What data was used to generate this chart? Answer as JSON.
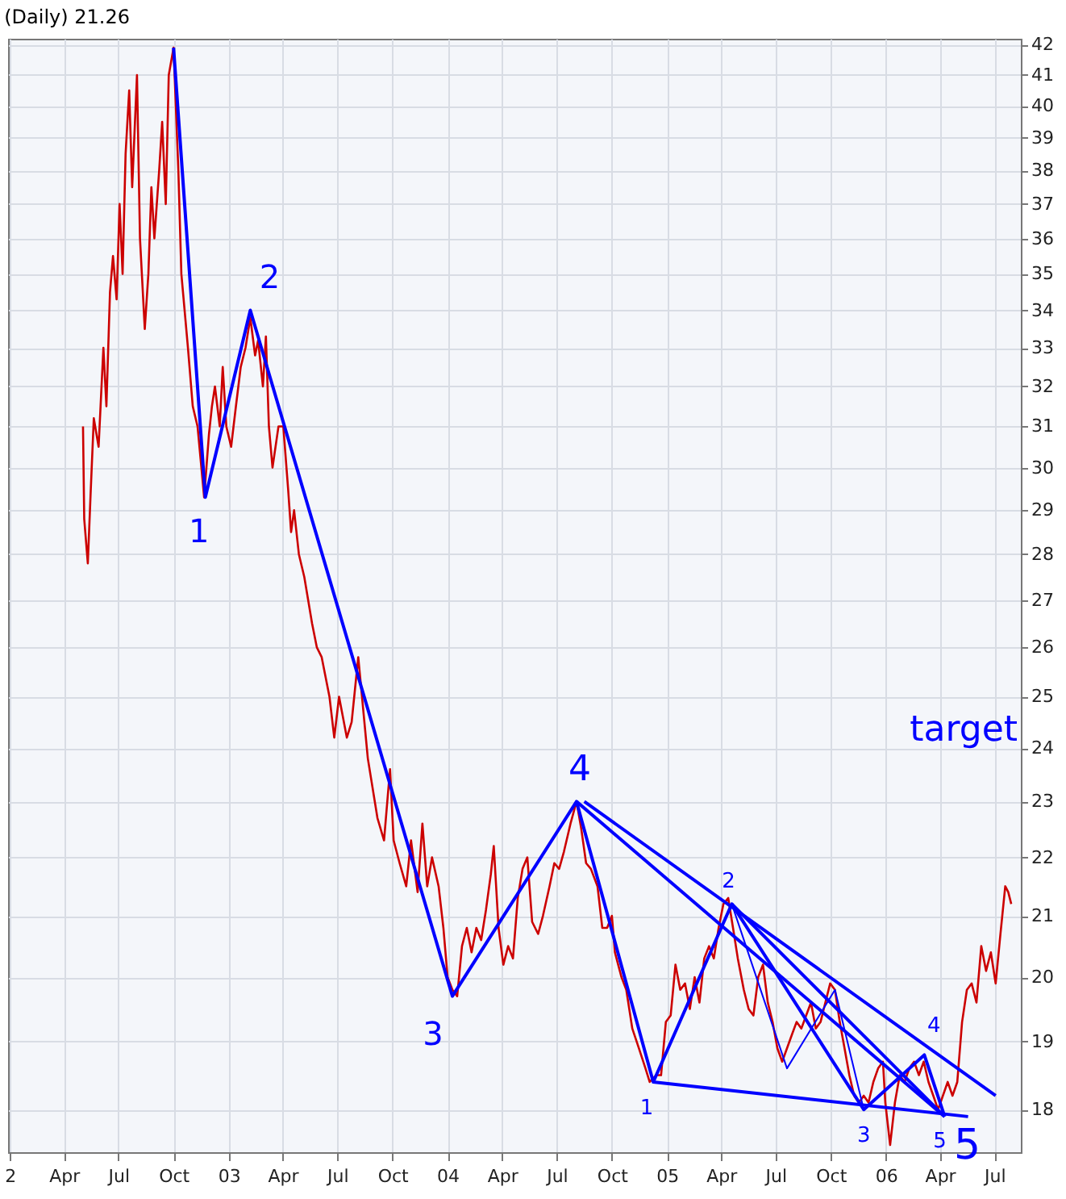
{
  "chart_data": {
    "type": "line",
    "title": "(Daily) 21.26",
    "log": "y",
    "grid": true,
    "xlim": [
      "2001-12-29",
      "2006-08-14"
    ],
    "ylim": [
      17.4,
      42.2
    ],
    "xticks": [
      {
        "value": "2002-01-01",
        "label": "2"
      },
      {
        "value": "2002-04-01",
        "label": "Apr"
      },
      {
        "value": "2002-07-01",
        "label": "Jul"
      },
      {
        "value": "2002-10-01",
        "label": "Oct"
      },
      {
        "value": "2003-01-01",
        "label": "03"
      },
      {
        "value": "2003-04-01",
        "label": "Apr"
      },
      {
        "value": "2003-07-01",
        "label": "Jul"
      },
      {
        "value": "2003-10-01",
        "label": "Oct"
      },
      {
        "value": "2004-01-01",
        "label": "04"
      },
      {
        "value": "2004-04-01",
        "label": "Apr"
      },
      {
        "value": "2004-07-01",
        "label": "Jul"
      },
      {
        "value": "2004-10-01",
        "label": "Oct"
      },
      {
        "value": "2005-01-01",
        "label": "05"
      },
      {
        "value": "2005-04-01",
        "label": "Apr"
      },
      {
        "value": "2005-07-01",
        "label": "Jul"
      },
      {
        "value": "2005-10-01",
        "label": "Oct"
      },
      {
        "value": "2006-01-01",
        "label": "06"
      },
      {
        "value": "2006-04-01",
        "label": "Apr"
      },
      {
        "value": "2006-07-01",
        "label": "Jul"
      }
    ],
    "yticks": [
      18,
      19,
      20,
      21,
      22,
      23,
      24,
      25,
      26,
      27,
      28,
      29,
      30,
      31,
      32,
      33,
      34,
      35,
      36,
      37,
      38,
      39,
      40,
      41,
      42
    ],
    "series": [
      {
        "color": "#cc0000",
        "x": [
          "2002-05-03",
          "2002-05-05",
          "2002-05-11",
          "2002-05-16",
          "2002-05-21",
          "2002-05-29",
          "2002-06-06",
          "2002-06-11",
          "2002-06-17",
          "2002-06-22",
          "2002-06-28",
          "2002-07-03",
          "2002-07-08",
          "2002-07-13",
          "2002-07-19",
          "2002-07-24",
          "2002-08-01",
          "2002-08-06",
          "2002-08-14",
          "2002-08-20",
          "2002-08-25",
          "2002-08-30",
          "2002-09-07",
          "2002-09-12",
          "2002-09-18",
          "2002-09-23",
          "2002-10-01",
          "2002-10-09",
          "2002-10-14",
          "2002-10-25",
          "2002-11-02",
          "2002-11-10",
          "2002-11-21",
          "2002-11-29",
          "2002-12-04",
          "2002-12-09",
          "2002-12-17",
          "2002-12-22",
          "2002-12-28",
          "2003-01-05",
          "2003-01-13",
          "2003-01-21",
          "2003-01-29",
          "2003-02-06",
          "2003-02-14",
          "2003-02-19",
          "2003-02-27",
          "2003-03-04",
          "2003-03-09",
          "2003-03-15",
          "2003-03-25",
          "2003-04-02",
          "2003-04-10",
          "2003-04-15",
          "2003-04-20",
          "2003-04-28",
          "2003-05-07",
          "2003-05-20",
          "2003-05-28",
          "2003-06-05",
          "2003-06-18",
          "2003-06-26",
          "2003-07-04",
          "2003-07-17",
          "2003-07-25",
          "2003-08-05",
          "2003-08-21",
          "2003-09-06",
          "2003-09-17",
          "2003-09-27",
          "2003-10-03",
          "2003-10-13",
          "2003-10-24",
          "2003-11-01",
          "2003-11-12",
          "2003-11-20",
          "2003-11-28",
          "2003-12-06",
          "2003-12-17",
          "2003-12-25",
          "2004-01-01",
          "2004-01-09",
          "2004-01-17",
          "2004-01-25",
          "2004-02-02",
          "2004-02-10",
          "2004-02-18",
          "2004-02-26",
          "2004-03-05",
          "2004-03-13",
          "2004-03-18",
          "2004-03-26",
          "2004-04-03",
          "2004-04-11",
          "2004-04-19",
          "2004-04-27",
          "2004-05-05",
          "2004-05-13",
          "2004-05-21",
          "2004-05-31",
          "2004-06-08",
          "2004-06-19",
          "2004-06-27",
          "2004-07-05",
          "2004-07-13",
          "2004-07-24",
          "2004-08-03",
          "2004-08-11",
          "2004-08-19",
          "2004-08-27",
          "2004-09-07",
          "2004-09-15",
          "2004-09-23",
          "2004-10-01",
          "2004-10-06",
          "2004-10-17",
          "2004-10-25",
          "2004-11-04",
          "2004-11-15",
          "2004-11-26",
          "2004-12-03",
          "2004-12-14",
          "2004-12-22",
          "2004-12-30",
          "2005-01-07",
          "2005-01-15",
          "2005-01-23",
          "2005-01-31",
          "2005-02-08",
          "2005-02-16",
          "2005-02-24",
          "2005-03-04",
          "2005-03-12",
          "2005-03-20",
          "2005-03-28",
          "2005-04-05",
          "2005-04-13",
          "2005-04-21",
          "2005-04-29",
          "2005-05-09",
          "2005-05-17",
          "2005-05-25",
          "2005-06-02",
          "2005-06-10",
          "2005-06-18",
          "2005-06-26",
          "2005-07-04",
          "2005-07-12",
          "2005-07-20",
          "2005-07-28",
          "2005-08-05",
          "2005-08-13",
          "2005-08-21",
          "2005-08-29",
          "2005-09-06",
          "2005-09-14",
          "2005-09-22",
          "2005-09-30",
          "2005-10-08",
          "2005-10-16",
          "2005-10-24",
          "2005-11-01",
          "2005-11-09",
          "2005-11-17",
          "2005-11-25",
          "2005-12-03",
          "2005-12-11",
          "2005-12-19",
          "2005-12-27",
          "2005-12-31",
          "2006-01-08",
          "2006-01-16",
          "2006-01-24",
          "2006-02-01",
          "2006-02-09",
          "2006-02-17",
          "2006-02-25",
          "2006-03-05",
          "2006-03-13",
          "2006-03-21",
          "2006-03-29",
          "2006-04-06",
          "2006-04-14",
          "2006-04-22",
          "2006-04-30",
          "2006-05-08",
          "2006-05-16",
          "2006-05-24",
          "2006-06-01",
          "2006-06-09",
          "2006-06-17",
          "2006-06-25",
          "2006-07-03",
          "2006-07-11",
          "2006-07-19",
          "2006-07-24",
          "2006-07-29"
        ],
        "values": [
          31.0,
          28.8,
          27.8,
          29.5,
          31.2,
          30.5,
          33.0,
          31.5,
          34.5,
          35.5,
          34.3,
          37.0,
          35.0,
          38.5,
          40.5,
          37.5,
          41.0,
          36.0,
          33.5,
          35.0,
          37.5,
          36.0,
          38.0,
          39.5,
          37.0,
          41.0,
          41.9,
          38.0,
          35.0,
          33.0,
          31.5,
          31.0,
          29.3,
          30.8,
          31.5,
          32.0,
          31.0,
          32.5,
          31.0,
          30.5,
          31.5,
          32.5,
          33.0,
          33.8,
          32.8,
          33.2,
          32.0,
          33.3,
          31.0,
          30.0,
          31.0,
          31.0,
          29.5,
          28.5,
          29.0,
          28.0,
          27.5,
          26.5,
          26.0,
          25.8,
          25.0,
          24.2,
          25.0,
          24.2,
          24.5,
          25.8,
          23.8,
          22.7,
          22.3,
          23.6,
          22.3,
          21.9,
          21.5,
          22.3,
          21.4,
          22.6,
          21.5,
          22.0,
          21.5,
          20.8,
          20.0,
          19.8,
          19.7,
          20.5,
          20.8,
          20.4,
          20.8,
          20.6,
          21.1,
          21.7,
          22.2,
          20.8,
          20.2,
          20.5,
          20.3,
          21.3,
          21.8,
          22.0,
          20.9,
          20.7,
          21.0,
          21.5,
          21.9,
          21.8,
          22.1,
          22.6,
          23.0,
          22.5,
          21.9,
          21.8,
          21.5,
          20.8,
          20.8,
          21.0,
          20.4,
          20.0,
          19.8,
          19.2,
          18.9,
          18.6,
          18.4,
          18.5,
          18.5,
          19.3,
          19.4,
          20.2,
          19.8,
          19.9,
          19.5,
          20.0,
          19.6,
          20.3,
          20.5,
          20.3,
          20.8,
          21.2,
          21.3,
          20.8,
          20.3,
          19.8,
          19.5,
          19.4,
          20.0,
          20.2,
          19.6,
          19.3,
          18.9,
          18.7,
          18.9,
          19.1,
          19.3,
          19.2,
          19.4,
          19.6,
          19.2,
          19.3,
          19.6,
          19.9,
          19.8,
          19.3,
          18.9,
          18.5,
          18.2,
          18.1,
          18.2,
          18.1,
          18.4,
          18.6,
          18.7,
          18.1,
          17.5,
          18.1,
          18.5,
          18.4,
          18.6,
          18.7,
          18.5,
          18.7,
          18.4,
          18.2,
          18.0,
          18.2,
          18.4,
          18.2,
          18.4,
          19.3,
          19.8,
          19.9,
          19.6,
          20.5,
          20.1,
          20.4,
          19.9,
          20.7,
          21.5,
          21.4,
          21.2
        ]
      },
      {
        "color": "#0000ff",
        "x": [
          "2002-10-01",
          "2002-11-23",
          "2003-02-06",
          "2004-01-09",
          "2004-08-03",
          "2004-12-09",
          "2005-04-19",
          "2005-11-25",
          "2006-03-06",
          "2006-04-09"
        ],
        "values": [
          41.9,
          29.3,
          34.0,
          19.7,
          23.0,
          18.4,
          21.2,
          18.0,
          18.8,
          17.9
        ]
      },
      {
        "color": "#0000ff",
        "x": [
          "2005-04-19",
          "2005-07-20",
          "2005-10-08",
          "2005-11-25"
        ],
        "values": [
          21.2,
          18.6,
          19.8,
          18.0
        ]
      },
      {
        "color": "#0000ff",
        "x": [
          "2004-08-16",
          "2006-07-03"
        ],
        "values": [
          23.0,
          18.2
        ]
      },
      {
        "color": "#0000ff",
        "x": [
          "2004-08-03",
          "2006-04-09"
        ],
        "values": [
          23.0,
          17.9
        ]
      },
      {
        "color": "#0000ff",
        "x": [
          "2005-04-19",
          "2006-04-09"
        ],
        "values": [
          21.2,
          17.9
        ]
      },
      {
        "color": "#0000ff",
        "x": [
          "2004-12-09",
          "2006-05-18"
        ],
        "values": [
          18.4,
          17.9
        ]
      }
    ],
    "annotations": [
      {
        "text": "1",
        "x": "2002-11-23",
        "y": 29.3
      },
      {
        "text": "2",
        "x": "2003-02-06",
        "y": 34.0
      },
      {
        "text": "3",
        "x": "2004-01-09",
        "y": 19.7
      },
      {
        "text": "4",
        "x": "2004-08-03",
        "y": 23.0
      },
      {
        "text": "5",
        "x": "2006-04-09",
        "y": 17.9
      },
      {
        "text": "1",
        "x": "2004-12-09",
        "y": 18.4
      },
      {
        "text": "2",
        "x": "2005-04-19",
        "y": 21.2
      },
      {
        "text": "3",
        "x": "2005-11-25",
        "y": 18.0
      },
      {
        "text": "4",
        "x": "2006-03-06",
        "y": 18.8
      },
      {
        "text": "5",
        "x": "2006-04-09",
        "y": 17.9
      },
      "target"
    ]
  }
}
